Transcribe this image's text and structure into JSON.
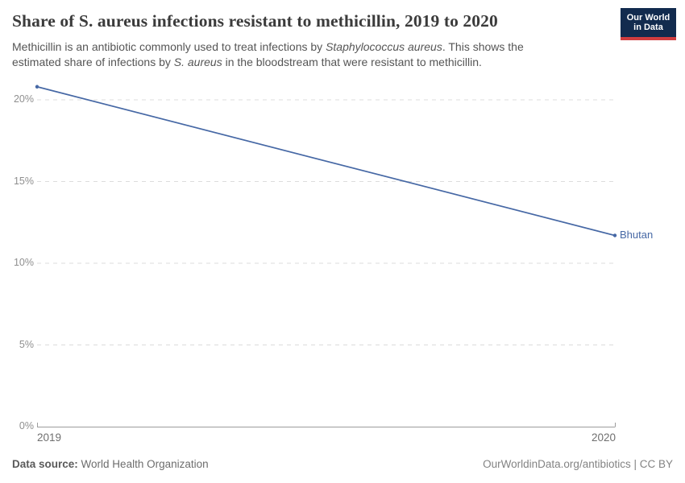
{
  "header": {
    "title": "Share of S. aureus infections resistant to methicillin, 2019 to 2020",
    "subtitle_parts": [
      "Methicillin is an antibiotic commonly used to treat infections by ",
      "Staphylococcus aureus",
      ". This shows the estimated share of infections by ",
      "S. aureus",
      " in the bloodstream that were resistant to methicillin."
    ],
    "logo": {
      "line1": "Our World",
      "line2": "in Data"
    }
  },
  "chart_data": {
    "type": "line",
    "title": "Share of S. aureus infections resistant to methicillin, 2019 to 2020",
    "x": [
      2019,
      2020
    ],
    "series": [
      {
        "name": "Bhutan",
        "values": [
          20.8,
          11.7
        ]
      }
    ],
    "unit": "%",
    "ylim": [
      0,
      21.5
    ],
    "yticks": [
      0,
      5,
      10,
      15,
      20
    ],
    "ytick_labels": [
      "0%",
      "5%",
      "10%",
      "15%",
      "20%"
    ],
    "xtick_labels": [
      "2019",
      "2020"
    ],
    "grid": "dashed-horizontal-on",
    "legend": "inline-end-of-line-label"
  },
  "axes": {
    "xticks": [
      "2019",
      "2020"
    ]
  },
  "footer": {
    "source_label": "Data source:",
    "source_value": "World Health Organization",
    "credit": "OurWorldinData.org/antibiotics | CC BY"
  },
  "colors": {
    "accent_line": "#4668a5",
    "logo_navy": "#122b4e",
    "logo_red": "#d13d3f",
    "grid": "#dcdcdc",
    "axis": "#9c9c9c"
  }
}
